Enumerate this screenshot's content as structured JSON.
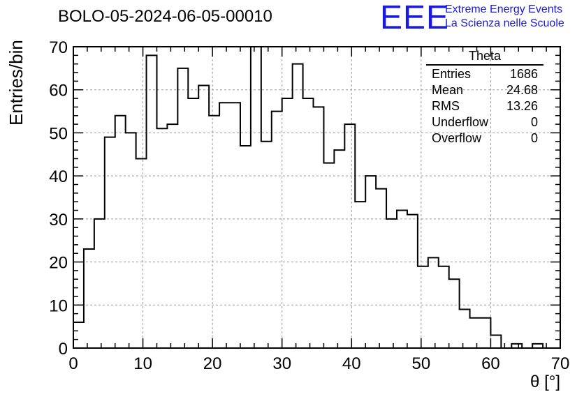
{
  "header": {
    "title": "BOLO-05-2024-06-05-00010"
  },
  "logo": {
    "letters": "EEE",
    "line1": "Extreme Energy Events",
    "line2": "La Scienza nelle Scuole",
    "color": "#1a1adf"
  },
  "stats": {
    "title": "Theta",
    "rows": [
      {
        "label": "Entries",
        "value": "1686"
      },
      {
        "label": "Mean",
        "value": "24.68"
      },
      {
        "label": "RMS",
        "value": "13.26"
      },
      {
        "label": "Underflow",
        "value": "0"
      },
      {
        "label": "Overflow",
        "value": "0"
      }
    ]
  },
  "chart_data": {
    "type": "bar",
    "histogram": true,
    "xlabel": "θ [°]",
    "ylabel": "Entries/bin",
    "xlim": [
      0,
      70
    ],
    "ylim": [
      0,
      70
    ],
    "grid": true,
    "xticks": [
      0,
      10,
      20,
      30,
      40,
      50,
      60,
      70
    ],
    "yticks": [
      0,
      10,
      20,
      30,
      40,
      50,
      60,
      70
    ],
    "bin_width": 1.5,
    "bin_start": 0,
    "values": [
      6,
      23,
      30,
      49,
      54,
      50,
      44,
      68,
      51,
      52,
      65,
      58,
      61,
      54,
      57,
      57,
      47,
      70,
      48,
      55,
      58,
      66,
      58,
      56,
      43,
      46,
      52,
      34,
      40,
      37,
      30,
      32,
      31,
      19,
      21,
      19,
      16,
      9,
      7,
      7,
      3,
      0,
      1,
      0,
      1,
      0,
      0
    ]
  }
}
